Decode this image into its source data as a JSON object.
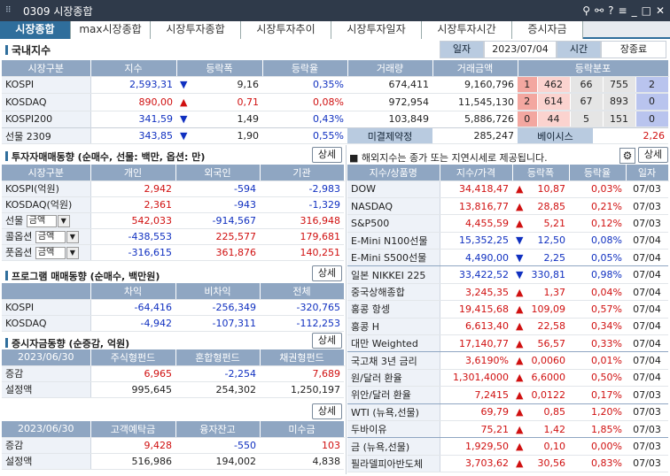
{
  "window": {
    "title": "0309 시장종합"
  },
  "tabs": [
    "시장종합",
    "max시장종합",
    "시장투자종합",
    "시장투자추이",
    "시장투자일자",
    "시장투자시간",
    "증시자금"
  ],
  "domestic": {
    "title": "국내지수",
    "date_label": "일자",
    "date_value": "2023/07/04",
    "time_label": "시간",
    "time_value": "장종료",
    "headers": [
      "시장구분",
      "지수",
      "등락폭",
      "등락율",
      "거래량",
      "거래금액",
      "등락분포"
    ],
    "rows": [
      {
        "name": "KOSPI",
        "index": "2,593,31",
        "dir": "down",
        "change": "9,16",
        "rate": "0,35%",
        "volume": "674,411",
        "amount": "9,160,796",
        "dist": [
          "1",
          "462",
          "66",
          "755",
          "2"
        ]
      },
      {
        "name": "KOSDAQ",
        "index": "890,00",
        "dir": "up",
        "change": "0,71",
        "rate": "0,08%",
        "volume": "972,954",
        "amount": "11,545,130",
        "dist": [
          "2",
          "614",
          "67",
          "893",
          "0"
        ]
      },
      {
        "name": "KOSPI200",
        "index": "341,59",
        "dir": "down",
        "change": "1,49",
        "rate": "0,43%",
        "volume": "103,849",
        "amount": "5,886,726",
        "dist": [
          "0",
          "44",
          "5",
          "151",
          "0"
        ]
      }
    ],
    "futures": {
      "name": "선물 2309",
      "index": "343,85",
      "dir": "down",
      "change": "1,90",
      "rate": "0,55%",
      "oi_label": "미결제약정",
      "oi_value": "285,247",
      "basis_label": "베이시스",
      "basis_value": "2,26"
    }
  },
  "investor": {
    "title": "투자자매매동향 (순매수, 선물: 백만, 옵션: 만)",
    "detail": "상세",
    "headers": [
      "시장구분",
      "개인",
      "외국인",
      "기관"
    ],
    "rows": [
      {
        "name": "KOSPI(억원)",
        "v1": "2,942",
        "v2": "-594",
        "v3": "-2,983"
      },
      {
        "name": "KOSDAQ(억원)",
        "v1": "2,361",
        "v2": "-943",
        "v3": "-1,329"
      },
      {
        "name": "선물",
        "sel": "금액",
        "v1": "542,033",
        "v2": "-914,567",
        "v3": "316,948"
      },
      {
        "name": "콜옵션",
        "sel": "금액",
        "v1": "-438,553",
        "v2": "225,577",
        "v3": "179,681"
      },
      {
        "name": "풋옵션",
        "sel": "금액",
        "v1": "-316,615",
        "v2": "361,876",
        "v3": "140,251"
      }
    ]
  },
  "program": {
    "title": "프로그램 매매동향 (순매수, 백만원)",
    "detail": "상세",
    "headers": [
      "",
      "차익",
      "비차익",
      "전체"
    ],
    "rows": [
      {
        "name": "KOSPI",
        "v1": "-64,416",
        "v2": "-256,349",
        "v3": "-320,765"
      },
      {
        "name": "KOSDAQ",
        "v1": "-4,942",
        "v2": "-107,311",
        "v3": "-112,253"
      }
    ]
  },
  "funds": {
    "title": "증시자금동향 (순증감, 억원)",
    "detail": "상세",
    "headers": [
      "2023/06/30",
      "주식형펀드",
      "혼합형펀드",
      "채권형펀드"
    ],
    "rows": [
      {
        "name": "증감",
        "v1": "6,965",
        "v2": "-2,254",
        "v3": "7,689"
      },
      {
        "name": "설정액",
        "v1": "995,645",
        "v2": "254,302",
        "v3": "1,250,197"
      }
    ]
  },
  "deposits": {
    "detail": "상세",
    "headers": [
      "2023/06/30",
      "고객예탁금",
      "융자잔고",
      "미수금"
    ],
    "rows": [
      {
        "name": "증감",
        "v1": "9,428",
        "v2": "-550",
        "v3": "103"
      },
      {
        "name": "설정액",
        "v1": "516,986",
        "v2": "194,002",
        "v3": "4,838"
      }
    ]
  },
  "overseas": {
    "notice": "■ 해외지수는 종가 또는 지연시세로 제공됩니다.",
    "detail": "상세",
    "headers": [
      "지수/상품명",
      "지수/가격",
      "등락폭",
      "등락율",
      "일자"
    ],
    "rows": [
      {
        "name": "DOW",
        "price": "34,418,47",
        "dir": "up",
        "change": "10,87",
        "rate": "0,03%",
        "date": "07/03"
      },
      {
        "name": "NASDAQ",
        "price": "13,816,77",
        "dir": "up",
        "change": "28,85",
        "rate": "0,21%",
        "date": "07/03"
      },
      {
        "name": "S&P500",
        "price": "4,455,59",
        "dir": "up",
        "change": "5,21",
        "rate": "0,12%",
        "date": "07/03"
      },
      {
        "name": "E-Mini N100선물",
        "price": "15,352,25",
        "dir": "down",
        "change": "12,50",
        "rate": "0,08%",
        "date": "07/04"
      },
      {
        "name": "E-Mini S500선물",
        "price": "4,490,00",
        "dir": "down",
        "change": "2,25",
        "rate": "0,05%",
        "date": "07/04"
      },
      {
        "name": "일본 NIKKEI 225",
        "price": "33,422,52",
        "dir": "down",
        "change": "330,81",
        "rate": "0,98%",
        "date": "07/04"
      },
      {
        "name": "중국상해종합",
        "price": "3,245,35",
        "dir": "up",
        "change": "1,37",
        "rate": "0,04%",
        "date": "07/04"
      },
      {
        "name": "홍콩 항셍",
        "price": "19,415,68",
        "dir": "up",
        "change": "109,09",
        "rate": "0,57%",
        "date": "07/04"
      },
      {
        "name": "홍콩 H",
        "price": "6,613,40",
        "dir": "up",
        "change": "22,58",
        "rate": "0,34%",
        "date": "07/04"
      },
      {
        "name": "대만 Weighted",
        "price": "17,140,77",
        "dir": "up",
        "change": "56,57",
        "rate": "0,33%",
        "date": "07/04"
      },
      {
        "name": "국고채 3년 금리",
        "price": "3,6190%",
        "dir": "up",
        "change": "0,0060",
        "rate": "0,01%",
        "date": "07/04"
      },
      {
        "name": "원/달러 환율",
        "price": "1,301,4000",
        "dir": "up",
        "change": "6,6000",
        "rate": "0,50%",
        "date": "07/04"
      },
      {
        "name": "위안/달러 환율",
        "price": "7,2415",
        "dir": "up",
        "change": "0,0122",
        "rate": "0,17%",
        "date": "07/03"
      },
      {
        "name": "WTI (뉴욕,선물)",
        "price": "69,79",
        "dir": "up",
        "change": "0,85",
        "rate": "1,20%",
        "date": "07/03"
      },
      {
        "name": "두바이유",
        "price": "75,21",
        "dir": "up",
        "change": "1,42",
        "rate": "1,85%",
        "date": "07/03"
      },
      {
        "name": "금 (뉴욕,선물)",
        "price": "1,929,50",
        "dir": "up",
        "change": "0,10",
        "rate": "0,00%",
        "date": "07/03"
      },
      {
        "name": "필라델피아반도체",
        "price": "3,703,62",
        "dir": "up",
        "change": "30,56",
        "rate": "0,83%",
        "date": "07/03"
      }
    ]
  },
  "colors": {
    "up": "#d01010",
    "down": "#1030c0",
    "header": "#8fa6c2",
    "accent": "#2f6e9c"
  }
}
